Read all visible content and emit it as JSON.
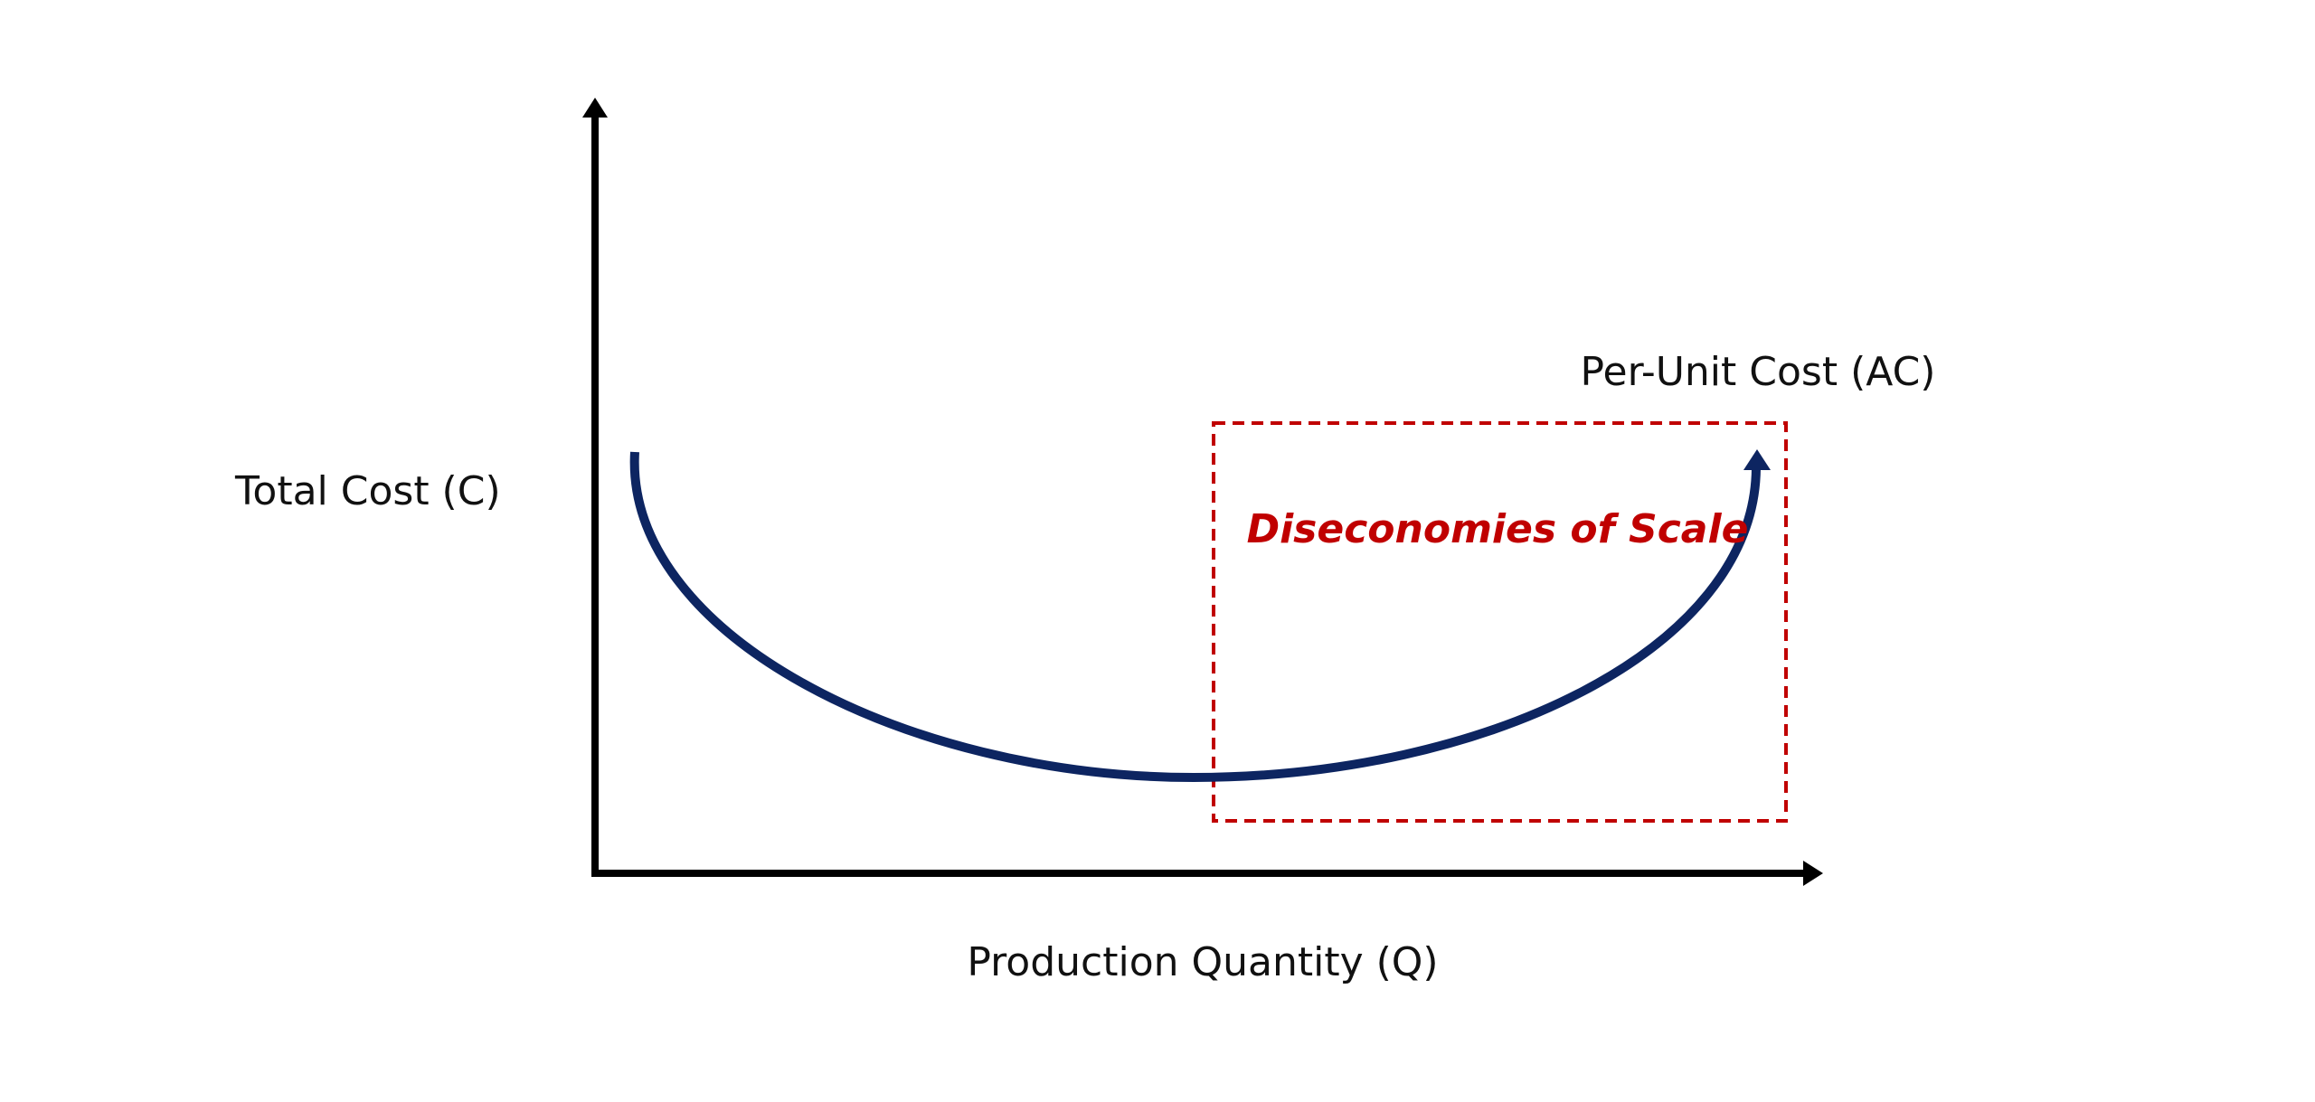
{
  "diagram": {
    "y_axis_label": "Total Cost (C)",
    "x_axis_label": "Production Quantity (Q)",
    "curve_label": "Per-Unit Cost (AC)",
    "region_label": "Diseconomies of Scale",
    "colors": {
      "axis": "#000000",
      "curve": "#0d2561",
      "region": "#c00000",
      "text": "#111111"
    }
  }
}
